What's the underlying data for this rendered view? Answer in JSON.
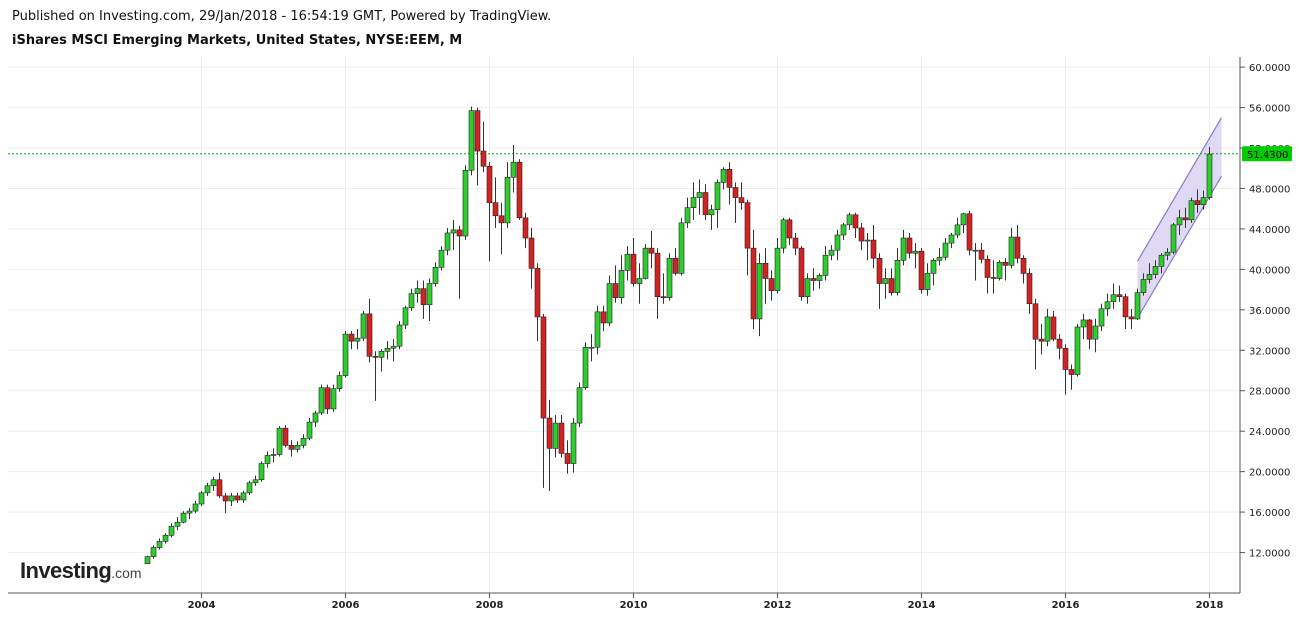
{
  "header": {
    "published": "Published on Investing.com, 29/Jan/2018 - 16:54:19 GMT, Powered by TradingView.",
    "title": "iShares MSCI Emerging Markets, United States, NYSE:EEM, M"
  },
  "logo": {
    "main": "Investing",
    "suffix": ".com"
  },
  "colors": {
    "up": "#2ecc2e",
    "down": "#d22222",
    "last_price_line": "#00aa00",
    "last_price_tag": "#00cc00",
    "channel_fill": "#d8d0f0",
    "channel_stroke": "#8a78c8",
    "grid": "#eeeeee"
  },
  "chart_data": {
    "type": "candlestick",
    "interval": "M",
    "xlim": [
      "2002-01",
      "2018-06"
    ],
    "ylim": [
      8.0,
      61.0
    ],
    "y_ticks": [
      "12.0000",
      "16.0000",
      "20.0000",
      "24.0000",
      "28.0000",
      "32.0000",
      "36.0000",
      "40.0000",
      "44.0000",
      "48.0000",
      "52.0000",
      "56.0000",
      "60.0000"
    ],
    "x_ticks": [
      "2004",
      "2006",
      "2008",
      "2010",
      "2012",
      "2014",
      "2016",
      "2018"
    ],
    "last_price": "51.4300",
    "last_price_value": 51.43,
    "channel": {
      "lower": [
        [
          "2017-01",
          35.2
        ],
        [
          "2018-03",
          49.2
        ]
      ],
      "upper": [
        [
          "2017-01",
          40.8
        ],
        [
          "2018-03",
          55.0
        ]
      ]
    },
    "candles": [
      [
        "2003-04",
        10.9,
        11.7,
        10.9,
        11.6
      ],
      [
        "2003-05",
        11.6,
        12.7,
        11.4,
        12.5
      ],
      [
        "2003-06",
        12.5,
        13.4,
        12.3,
        13.1
      ],
      [
        "2003-07",
        13.1,
        13.9,
        12.9,
        13.7
      ],
      [
        "2003-08",
        13.7,
        14.9,
        13.5,
        14.6
      ],
      [
        "2003-09",
        14.6,
        15.5,
        14.2,
        15.0
      ],
      [
        "2003-10",
        15.0,
        16.1,
        14.9,
        15.9
      ],
      [
        "2003-11",
        15.9,
        16.4,
        15.3,
        16.1
      ],
      [
        "2003-12",
        16.1,
        17.1,
        15.9,
        16.8
      ],
      [
        "2004-01",
        16.8,
        18.1,
        16.6,
        17.9
      ],
      [
        "2004-02",
        17.9,
        18.9,
        17.6,
        18.6
      ],
      [
        "2004-03",
        18.6,
        19.5,
        18.1,
        19.2
      ],
      [
        "2004-04",
        19.2,
        19.9,
        17.4,
        17.6
      ],
      [
        "2004-05",
        17.6,
        17.9,
        15.9,
        17.1
      ],
      [
        "2004-06",
        17.1,
        17.9,
        16.6,
        17.6
      ],
      [
        "2004-07",
        17.6,
        17.9,
        16.9,
        17.2
      ],
      [
        "2004-08",
        17.2,
        18.1,
        16.9,
        17.9
      ],
      [
        "2004-09",
        17.9,
        19.1,
        17.7,
        18.9
      ],
      [
        "2004-10",
        18.9,
        19.6,
        18.6,
        19.2
      ],
      [
        "2004-11",
        19.2,
        21.0,
        19.0,
        20.8
      ],
      [
        "2004-12",
        20.8,
        22.0,
        20.4,
        21.6
      ],
      [
        "2005-01",
        21.6,
        22.3,
        20.9,
        21.7
      ],
      [
        "2005-02",
        21.7,
        24.5,
        21.5,
        24.3
      ],
      [
        "2005-03",
        24.3,
        24.6,
        22.4,
        22.6
      ],
      [
        "2005-04",
        22.6,
        23.1,
        21.5,
        22.2
      ],
      [
        "2005-05",
        22.2,
        23.0,
        21.9,
        22.6
      ],
      [
        "2005-06",
        22.6,
        23.7,
        22.3,
        23.3
      ],
      [
        "2005-07",
        23.3,
        25.3,
        23.1,
        24.9
      ],
      [
        "2005-08",
        24.9,
        26.0,
        24.4,
        25.8
      ],
      [
        "2005-09",
        25.8,
        28.6,
        25.6,
        28.3
      ],
      [
        "2005-10",
        28.3,
        28.6,
        25.7,
        26.2
      ],
      [
        "2005-11",
        26.2,
        28.6,
        25.9,
        28.2
      ],
      [
        "2005-12",
        28.2,
        29.9,
        27.9,
        29.5
      ],
      [
        "2006-01",
        29.5,
        33.9,
        29.3,
        33.6
      ],
      [
        "2006-02",
        33.6,
        33.9,
        32.1,
        32.9
      ],
      [
        "2006-03",
        32.9,
        34.1,
        32.1,
        33.2
      ],
      [
        "2006-04",
        33.2,
        35.9,
        32.9,
        35.6
      ],
      [
        "2006-05",
        35.6,
        37.1,
        30.8,
        31.4
      ],
      [
        "2006-06",
        31.4,
        31.9,
        27.0,
        31.3
      ],
      [
        "2006-07",
        31.3,
        32.1,
        29.9,
        31.9
      ],
      [
        "2006-08",
        31.9,
        32.9,
        31.1,
        32.2
      ],
      [
        "2006-09",
        32.2,
        33.1,
        30.9,
        32.4
      ],
      [
        "2006-10",
        32.4,
        34.9,
        32.1,
        34.5
      ],
      [
        "2006-11",
        34.5,
        36.4,
        34.1,
        36.2
      ],
      [
        "2006-12",
        36.2,
        38.1,
        35.9,
        37.6
      ],
      [
        "2007-01",
        37.6,
        38.9,
        36.7,
        38.1
      ],
      [
        "2007-02",
        38.1,
        38.9,
        35.1,
        36.5
      ],
      [
        "2007-03",
        36.5,
        39.1,
        34.9,
        38.6
      ],
      [
        "2007-04",
        38.6,
        40.7,
        38.3,
        40.2
      ],
      [
        "2007-05",
        40.2,
        42.3,
        39.9,
        41.9
      ],
      [
        "2007-06",
        41.9,
        44.1,
        41.4,
        43.6
      ],
      [
        "2007-07",
        43.6,
        44.9,
        41.9,
        43.9
      ],
      [
        "2007-08",
        43.9,
        44.3,
        37.1,
        43.3
      ],
      [
        "2007-09",
        43.3,
        50.3,
        42.9,
        49.8
      ],
      [
        "2007-10",
        49.8,
        56.1,
        49.3,
        55.7
      ],
      [
        "2007-11",
        55.7,
        56.0,
        48.3,
        51.7
      ],
      [
        "2007-12",
        51.7,
        54.6,
        49.6,
        50.2
      ],
      [
        "2008-01",
        50.2,
        50.6,
        40.8,
        46.6
      ],
      [
        "2008-02",
        46.6,
        49.1,
        44.1,
        45.3
      ],
      [
        "2008-03",
        45.3,
        46.6,
        41.5,
        44.6
      ],
      [
        "2008-04",
        44.6,
        50.6,
        44.1,
        49.1
      ],
      [
        "2008-05",
        49.1,
        52.3,
        47.6,
        50.6
      ],
      [
        "2008-06",
        50.6,
        50.9,
        44.9,
        45.1
      ],
      [
        "2008-07",
        45.1,
        45.6,
        42.1,
        43.1
      ],
      [
        "2008-08",
        43.1,
        44.1,
        38.1,
        40.1
      ],
      [
        "2008-09",
        40.1,
        40.6,
        32.9,
        35.3
      ],
      [
        "2008-10",
        35.3,
        35.6,
        18.4,
        25.3
      ],
      [
        "2008-11",
        25.3,
        27.1,
        18.1,
        22.3
      ],
      [
        "2008-12",
        22.3,
        25.6,
        21.4,
        24.8
      ],
      [
        "2009-01",
        24.8,
        25.6,
        21.4,
        21.8
      ],
      [
        "2009-02",
        21.8,
        23.1,
        19.8,
        20.8
      ],
      [
        "2009-03",
        20.8,
        25.3,
        19.9,
        24.8
      ],
      [
        "2009-04",
        24.8,
        28.8,
        24.4,
        28.3
      ],
      [
        "2009-05",
        28.3,
        32.8,
        28.1,
        32.3
      ],
      [
        "2009-06",
        32.3,
        33.6,
        30.9,
        32.3
      ],
      [
        "2009-07",
        32.3,
        36.4,
        31.6,
        35.8
      ],
      [
        "2009-08",
        35.8,
        36.4,
        33.9,
        34.7
      ],
      [
        "2009-09",
        34.7,
        39.4,
        34.4,
        38.6
      ],
      [
        "2009-10",
        38.6,
        40.4,
        36.7,
        37.2
      ],
      [
        "2009-11",
        37.2,
        41.4,
        36.6,
        39.9
      ],
      [
        "2009-12",
        39.9,
        42.3,
        38.9,
        41.5
      ],
      [
        "2010-01",
        41.5,
        43.1,
        38.3,
        38.6
      ],
      [
        "2010-02",
        38.6,
        40.6,
        36.6,
        39.1
      ],
      [
        "2010-03",
        39.1,
        42.5,
        39.0,
        42.1
      ],
      [
        "2010-04",
        42.1,
        43.8,
        40.1,
        41.6
      ],
      [
        "2010-05",
        41.6,
        42.1,
        35.1,
        37.3
      ],
      [
        "2010-06",
        37.3,
        39.6,
        36.6,
        37.2
      ],
      [
        "2010-07",
        37.2,
        41.6,
        36.9,
        41.1
      ],
      [
        "2010-08",
        41.1,
        42.1,
        39.4,
        39.6
      ],
      [
        "2010-09",
        39.6,
        45.1,
        39.4,
        44.6
      ],
      [
        "2010-10",
        44.6,
        47.1,
        44.1,
        46.1
      ],
      [
        "2010-11",
        46.1,
        48.6,
        44.9,
        47.1
      ],
      [
        "2010-12",
        47.1,
        48.9,
        45.4,
        47.6
      ],
      [
        "2011-01",
        47.6,
        48.4,
        44.9,
        45.4
      ],
      [
        "2011-02",
        45.4,
        46.4,
        43.9,
        45.9
      ],
      [
        "2011-03",
        45.9,
        48.9,
        44.1,
        48.6
      ],
      [
        "2011-04",
        48.6,
        50.1,
        47.9,
        49.9
      ],
      [
        "2011-05",
        49.9,
        50.6,
        46.4,
        48.1
      ],
      [
        "2011-06",
        48.1,
        48.6,
        44.6,
        47.1
      ],
      [
        "2011-07",
        47.1,
        48.6,
        45.9,
        46.6
      ],
      [
        "2011-08",
        46.6,
        46.9,
        39.4,
        42.1
      ],
      [
        "2011-09",
        42.1,
        43.9,
        34.1,
        35.1
      ],
      [
        "2011-10",
        35.1,
        41.6,
        33.4,
        40.6
      ],
      [
        "2011-11",
        40.6,
        42.1,
        36.6,
        39.1
      ],
      [
        "2011-12",
        39.1,
        39.9,
        36.9,
        37.9
      ],
      [
        "2012-01",
        37.9,
        43.1,
        37.6,
        42.1
      ],
      [
        "2012-02",
        42.1,
        45.1,
        41.6,
        44.9
      ],
      [
        "2012-03",
        44.9,
        45.1,
        42.4,
        43.1
      ],
      [
        "2012-04",
        43.1,
        43.6,
        41.4,
        42.1
      ],
      [
        "2012-05",
        42.1,
        42.3,
        36.9,
        37.3
      ],
      [
        "2012-06",
        37.3,
        39.6,
        36.6,
        39.1
      ],
      [
        "2012-07",
        39.1,
        40.1,
        37.9,
        38.9
      ],
      [
        "2012-08",
        38.9,
        39.6,
        38.1,
        39.4
      ],
      [
        "2012-09",
        39.4,
        42.3,
        38.9,
        41.4
      ],
      [
        "2012-10",
        41.4,
        42.4,
        40.9,
        41.9
      ],
      [
        "2012-11",
        41.9,
        43.9,
        40.9,
        43.4
      ],
      [
        "2012-12",
        43.4,
        44.6,
        42.9,
        44.4
      ],
      [
        "2013-01",
        44.4,
        45.6,
        43.9,
        45.4
      ],
      [
        "2013-02",
        45.4,
        45.6,
        43.1,
        44.1
      ],
      [
        "2013-03",
        44.1,
        44.6,
        41.9,
        42.8
      ],
      [
        "2013-04",
        42.8,
        43.6,
        40.9,
        42.9
      ],
      [
        "2013-05",
        42.9,
        44.4,
        40.1,
        41.1
      ],
      [
        "2013-06",
        41.1,
        41.6,
        36.1,
        38.6
      ],
      [
        "2013-07",
        38.6,
        40.1,
        37.1,
        39.1
      ],
      [
        "2013-08",
        39.1,
        40.1,
        37.4,
        37.7
      ],
      [
        "2013-09",
        37.7,
        42.1,
        37.4,
        40.9
      ],
      [
        "2013-10",
        40.9,
        43.9,
        40.4,
        43.1
      ],
      [
        "2013-11",
        43.1,
        43.6,
        41.1,
        41.6
      ],
      [
        "2013-12",
        41.6,
        42.6,
        40.1,
        41.8
      ],
      [
        "2014-01",
        41.8,
        42.1,
        37.6,
        38.0
      ],
      [
        "2014-02",
        38.0,
        40.6,
        37.4,
        39.6
      ],
      [
        "2014-03",
        39.6,
        41.1,
        38.4,
        40.9
      ],
      [
        "2014-04",
        40.9,
        42.1,
        40.4,
        41.2
      ],
      [
        "2014-05",
        41.2,
        43.1,
        40.9,
        42.6
      ],
      [
        "2014-06",
        42.6,
        43.6,
        42.1,
        43.4
      ],
      [
        "2014-07",
        43.4,
        45.1,
        43.1,
        44.4
      ],
      [
        "2014-08",
        44.4,
        45.6,
        43.6,
        45.5
      ],
      [
        "2014-09",
        45.5,
        45.8,
        41.4,
        41.9
      ],
      [
        "2014-10",
        41.9,
        42.6,
        38.9,
        41.9
      ],
      [
        "2014-11",
        41.9,
        42.6,
        40.6,
        41.0
      ],
      [
        "2014-12",
        41.0,
        41.4,
        37.6,
        39.2
      ],
      [
        "2015-01",
        39.2,
        40.9,
        37.6,
        39.1
      ],
      [
        "2015-02",
        39.1,
        40.9,
        38.9,
        40.7
      ],
      [
        "2015-03",
        40.7,
        41.1,
        38.9,
        40.4
      ],
      [
        "2015-04",
        40.4,
        44.1,
        40.1,
        43.2
      ],
      [
        "2015-05",
        43.2,
        44.4,
        40.6,
        41.1
      ],
      [
        "2015-06",
        41.1,
        41.4,
        38.6,
        39.6
      ],
      [
        "2015-07",
        39.6,
        40.1,
        35.6,
        36.6
      ],
      [
        "2015-08",
        36.6,
        37.1,
        30.1,
        33.1
      ],
      [
        "2015-09",
        33.1,
        34.6,
        31.6,
        32.9
      ],
      [
        "2015-10",
        32.9,
        36.1,
        32.4,
        35.3
      ],
      [
        "2015-11",
        35.3,
        35.9,
        32.9,
        33.1
      ],
      [
        "2015-12",
        33.1,
        33.6,
        31.1,
        32.2
      ],
      [
        "2016-01",
        32.2,
        32.6,
        27.6,
        30.1
      ],
      [
        "2016-02",
        30.1,
        30.6,
        28.1,
        29.6
      ],
      [
        "2016-03",
        29.6,
        34.6,
        29.4,
        34.3
      ],
      [
        "2016-04",
        34.3,
        35.6,
        33.1,
        35.0
      ],
      [
        "2016-05",
        35.0,
        35.1,
        32.1,
        33.1
      ],
      [
        "2016-06",
        33.1,
        35.1,
        31.8,
        34.4
      ],
      [
        "2016-07",
        34.4,
        36.6,
        33.9,
        36.1
      ],
      [
        "2016-08",
        36.1,
        37.6,
        35.4,
        36.8
      ],
      [
        "2016-09",
        36.8,
        38.6,
        36.1,
        37.5
      ],
      [
        "2016-10",
        37.5,
        38.4,
        36.8,
        37.3
      ],
      [
        "2016-11",
        37.3,
        37.6,
        34.1,
        35.3
      ],
      [
        "2016-12",
        35.3,
        36.1,
        34.1,
        35.1
      ],
      [
        "2017-01",
        35.1,
        38.1,
        35.0,
        37.7
      ],
      [
        "2017-02",
        37.7,
        39.6,
        37.4,
        39.0
      ],
      [
        "2017-03",
        39.0,
        40.6,
        38.6,
        39.5
      ],
      [
        "2017-04",
        39.5,
        40.9,
        39.1,
        40.3
      ],
      [
        "2017-05",
        40.3,
        41.6,
        39.6,
        41.4
      ],
      [
        "2017-06",
        41.4,
        42.1,
        40.9,
        41.7
      ],
      [
        "2017-07",
        41.7,
        44.6,
        41.5,
        44.4
      ],
      [
        "2017-08",
        44.4,
        45.9,
        43.4,
        45.1
      ],
      [
        "2017-09",
        45.1,
        46.1,
        44.1,
        44.9
      ],
      [
        "2017-10",
        44.9,
        47.1,
        44.6,
        46.8
      ],
      [
        "2017-11",
        46.8,
        47.9,
        45.6,
        46.4
      ],
      [
        "2017-12",
        46.4,
        47.8,
        45.9,
        47.1
      ],
      [
        "2018-01",
        47.1,
        52.1,
        46.9,
        51.4
      ]
    ]
  }
}
